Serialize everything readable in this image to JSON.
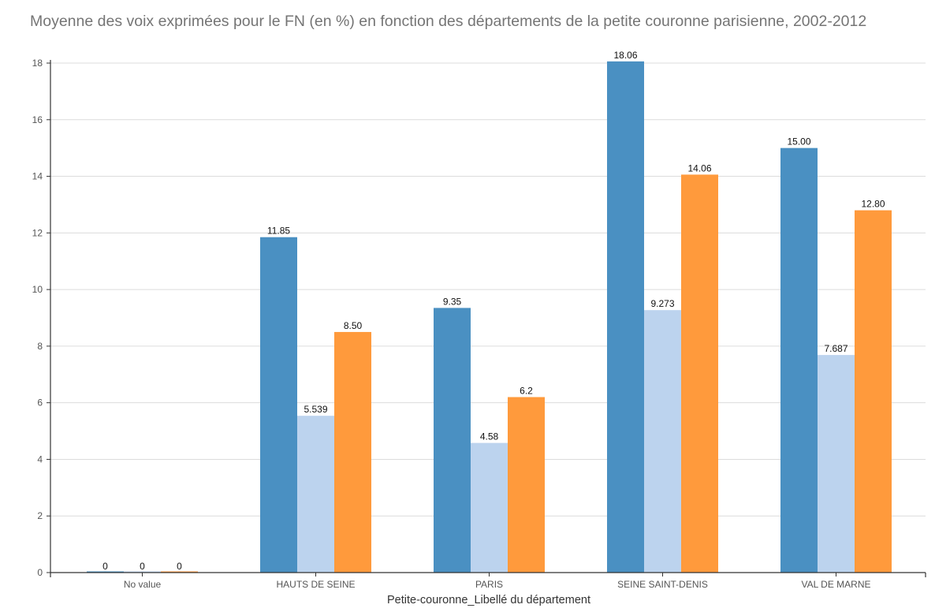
{
  "chart_data": {
    "type": "bar",
    "title": "Moyenne des voix exprimées pour le FN (en %) en fonction des départements de la petite couronne parisienne, 2002-2012",
    "xlabel": "Petite-couronne_Libellé du département",
    "ylabel": "",
    "ylim": [
      0,
      18
    ],
    "yticks": [
      "0",
      "2",
      "4",
      "6",
      "8",
      "10",
      "12",
      "14",
      "16",
      "18"
    ],
    "grid": true,
    "categories": [
      "No value",
      "HAUTS DE SEINE",
      "PARIS",
      "SEINE SAINT-DENIS",
      "VAL DE MARNE"
    ],
    "series": [
      {
        "values": [
          0,
          11.85,
          9.35,
          18.06,
          15.0
        ],
        "labels": [
          "0",
          "11.85",
          "9.35",
          "18.06",
          "15.00"
        ],
        "color": "#4a90c2"
      },
      {
        "values": [
          0,
          5.539,
          4.58,
          9.273,
          7.687
        ],
        "labels": [
          "0",
          "5.539",
          "4.58",
          "9.273",
          "7.687"
        ],
        "color": "#bcd3ee"
      },
      {
        "values": [
          0,
          8.5,
          6.2,
          14.06,
          12.8
        ],
        "labels": [
          "0",
          "8.50",
          "6.2",
          "14.06",
          "12.80"
        ],
        "color": "#ff9a3c"
      }
    ]
  }
}
